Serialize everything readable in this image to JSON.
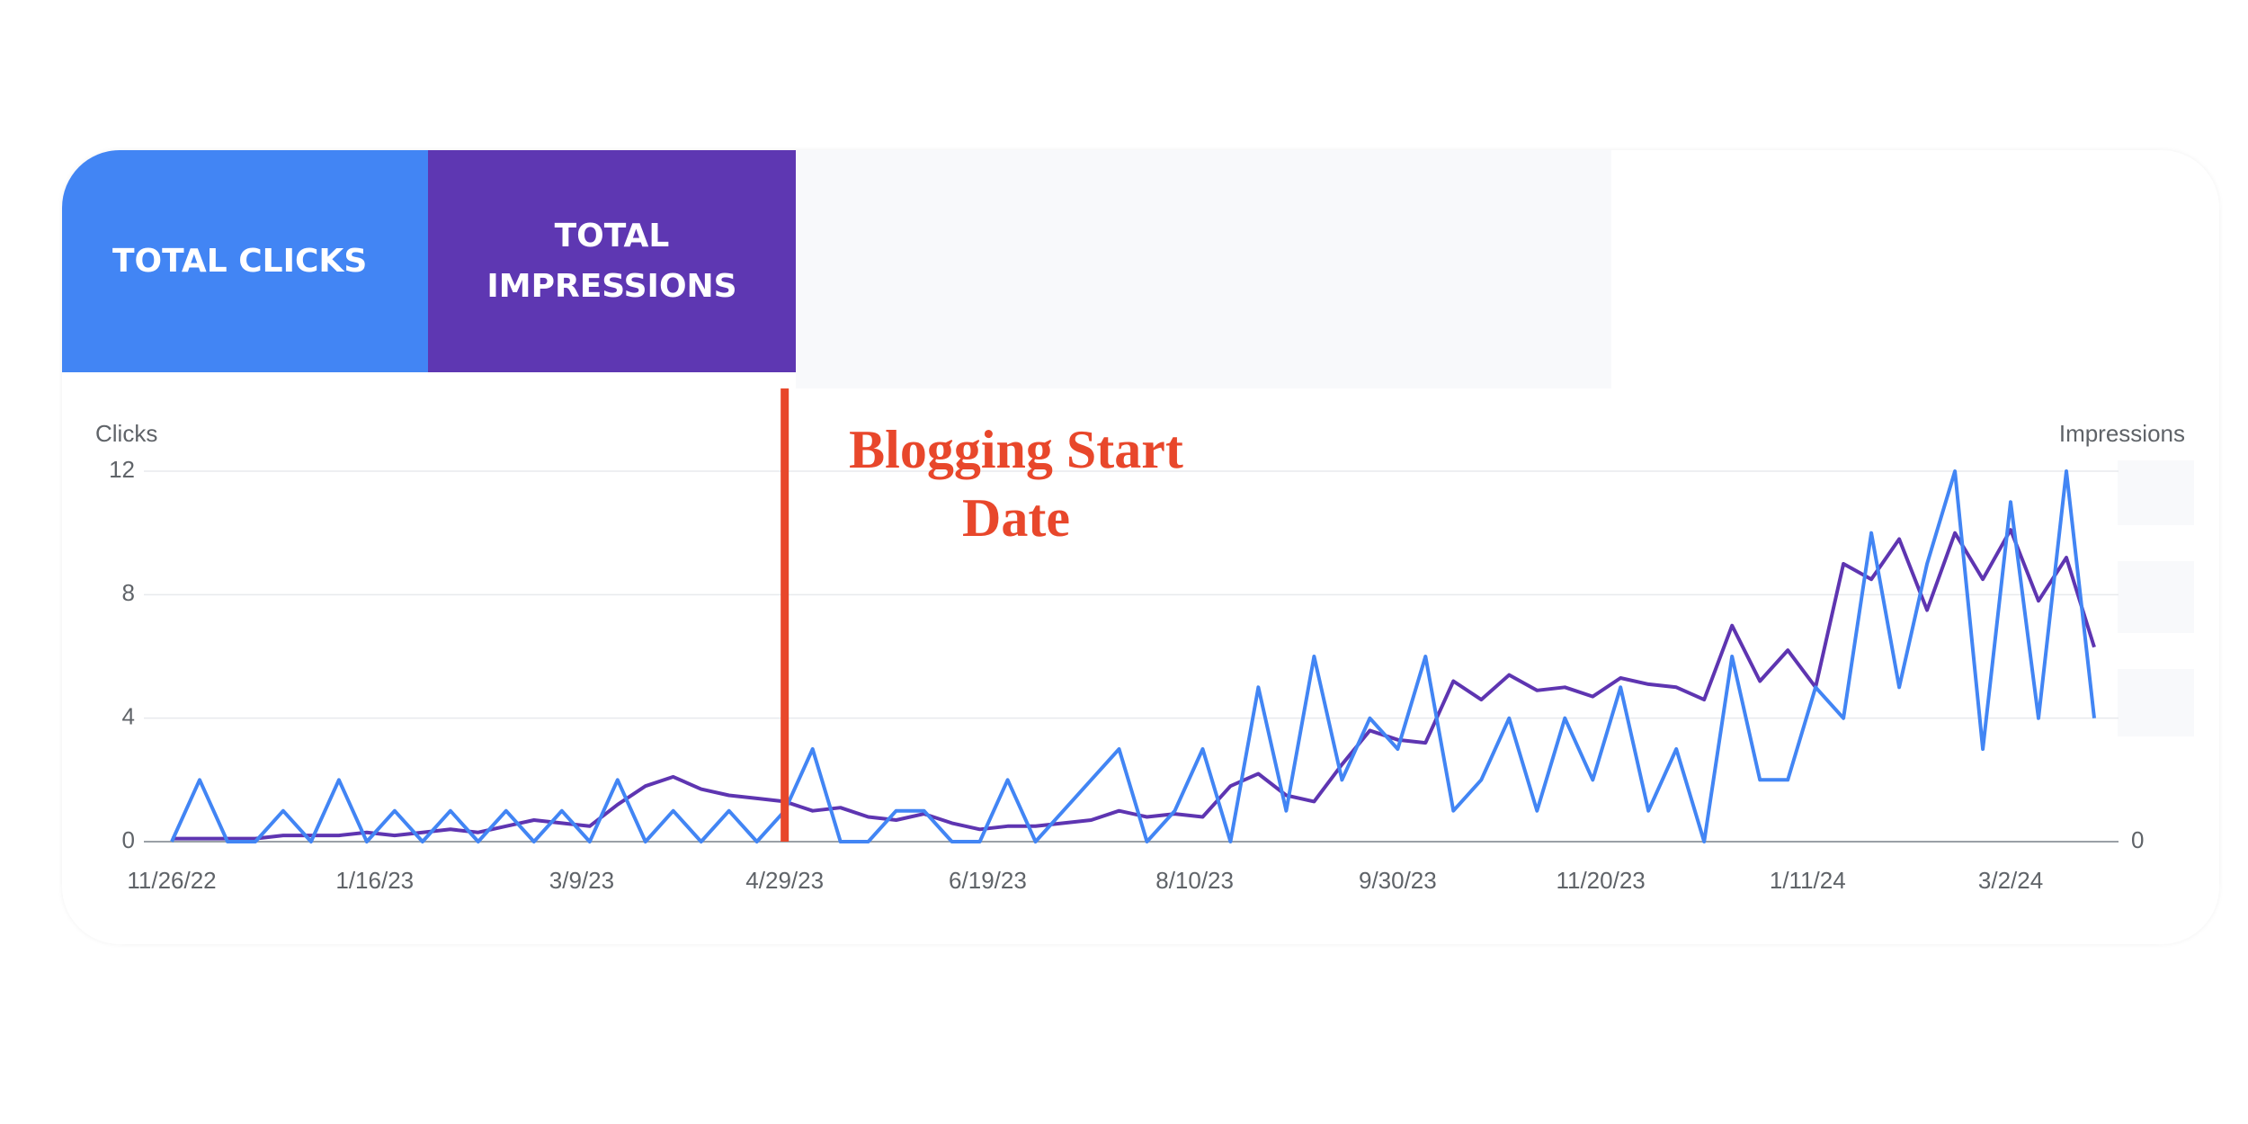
{
  "chart_data": {
    "type": "line",
    "ylabel": "Clicks",
    "y2label": "Impressions",
    "x": [
      "11/26/22",
      "12/3/22",
      "12/10/22",
      "12/17/22",
      "12/24/22",
      "12/31/22",
      "1/7/23",
      "1/14/23",
      "1/21/23",
      "1/28/23",
      "2/4/23",
      "2/11/23",
      "2/18/23",
      "2/25/23",
      "3/4/23",
      "3/11/23",
      "3/18/23",
      "3/25/23",
      "4/1/23",
      "4/8/23",
      "4/15/23",
      "4/22/23",
      "4/29/23",
      "5/6/23",
      "5/13/23",
      "5/20/23",
      "5/27/23",
      "6/3/23",
      "6/10/23",
      "6/17/23",
      "6/24/23",
      "7/1/23",
      "7/8/23",
      "7/15/23",
      "7/22/23",
      "7/29/23",
      "8/5/23",
      "8/12/23",
      "8/19/23",
      "8/26/23",
      "9/2/23",
      "9/9/23",
      "9/16/23",
      "9/23/23",
      "9/30/23",
      "10/7/23",
      "10/14/23",
      "10/21/23",
      "10/28/23",
      "11/4/23",
      "11/11/23",
      "11/18/23",
      "11/25/23",
      "12/2/23",
      "12/9/23",
      "12/16/23",
      "12/23/23",
      "12/30/23",
      "1/6/24",
      "1/13/24",
      "1/20/24",
      "1/27/24",
      "2/3/24",
      "2/10/24",
      "2/17/24",
      "2/24/24",
      "3/2/24",
      "3/9/24",
      "3/16/24",
      "3/23/24"
    ],
    "series": [
      {
        "name": "TOTAL CLICKS",
        "color": "#4285f4",
        "axis": "y",
        "values": [
          0,
          2,
          0,
          0,
          1,
          0,
          2,
          0,
          1,
          0,
          1,
          0,
          1,
          0,
          1,
          0,
          2,
          0,
          1,
          0,
          1,
          0,
          1,
          3,
          0,
          0,
          1,
          1,
          0,
          0,
          2,
          0,
          1,
          2,
          3,
          0,
          1,
          3,
          0,
          5,
          1,
          6,
          2,
          4,
          3,
          6,
          1,
          2,
          4,
          1,
          4,
          2,
          5,
          1,
          3,
          0,
          6,
          2,
          2,
          5,
          4,
          10,
          5,
          9,
          12,
          3,
          11,
          4,
          12,
          4
        ]
      },
      {
        "name": "TOTAL IMPRESSIONS",
        "color": "#5e35b1",
        "axis": "y2",
        "values": [
          0.1,
          0.1,
          0.1,
          0.1,
          0.2,
          0.2,
          0.2,
          0.3,
          0.2,
          0.3,
          0.4,
          0.3,
          0.5,
          0.7,
          0.6,
          0.5,
          1.2,
          1.8,
          2.1,
          1.7,
          1.5,
          1.4,
          1.3,
          1.0,
          1.1,
          0.8,
          0.7,
          0.9,
          0.6,
          0.4,
          0.5,
          0.5,
          0.6,
          0.7,
          1.0,
          0.8,
          0.9,
          0.8,
          1.8,
          2.2,
          1.5,
          1.3,
          2.5,
          3.6,
          3.3,
          3.2,
          5.2,
          4.6,
          5.4,
          4.9,
          5.0,
          4.7,
          5.3,
          5.1,
          5.0,
          4.6,
          7.0,
          5.2,
          6.2,
          5.0,
          9.0,
          8.5,
          9.8,
          7.5,
          10.0,
          8.5,
          10.1,
          7.8,
          9.2,
          6.3
        ]
      }
    ],
    "ylim": [
      0,
      12
    ],
    "yticks": [
      0,
      4,
      8,
      12
    ],
    "y2lim": [
      0,
      12
    ],
    "y2ticks": [
      0
    ],
    "xticks": [
      "11/26/22",
      "1/16/23",
      "3/9/23",
      "4/29/23",
      "6/19/23",
      "8/10/23",
      "9/30/23",
      "11/20/23",
      "1/11/24",
      "3/2/24"
    ],
    "grid": true,
    "annotations": [
      {
        "text": "Blogging Start Date",
        "x": "4/29/23",
        "color": "#e8472b"
      }
    ]
  }
}
